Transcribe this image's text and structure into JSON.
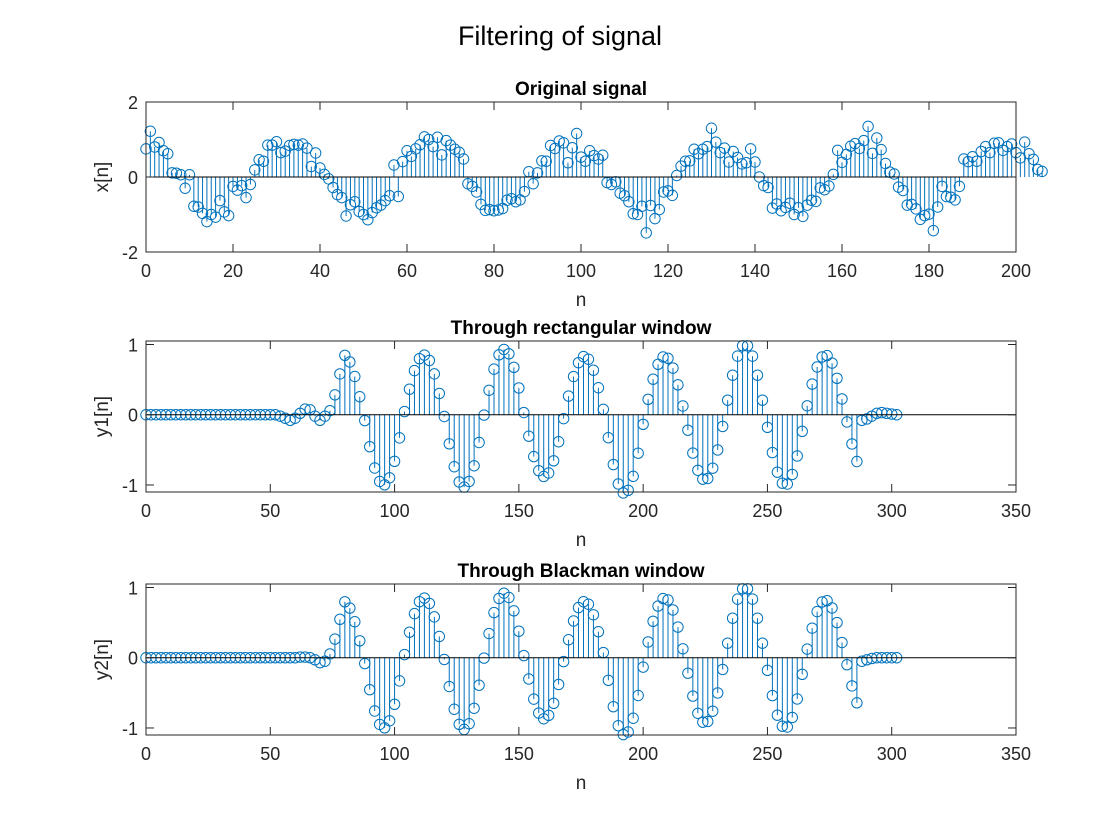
{
  "figure": {
    "suptitle": "Filtering of signal"
  },
  "colors": {
    "stem": "#0072BD",
    "axis": "#262626",
    "baseline": "#000000",
    "background": "#ffffff"
  },
  "chart_data": [
    {
      "type": "stem",
      "title": "Original signal",
      "xlabel": "n",
      "ylabel": "x[n]",
      "xlim": [
        0,
        200
      ],
      "ylim": [
        -2,
        2
      ],
      "xticks": [
        0,
        20,
        40,
        60,
        80,
        100,
        120,
        140,
        160,
        180,
        200
      ],
      "yticks": [
        -2,
        0,
        2
      ],
      "grid": false,
      "legend": "none",
      "x_start": 0,
      "values": [
        0.75,
        1.22,
        0.8,
        0.92,
        0.7,
        0.62,
        0.11,
        0.1,
        0.06,
        -0.3,
        0.06,
        -0.78,
        -0.8,
        -0.97,
        -1.19,
        -1.0,
        -1.07,
        -0.63,
        -0.93,
        -1.03,
        -0.25,
        -0.35,
        -0.23,
        -0.55,
        -0.2,
        0.19,
        0.46,
        0.42,
        0.85,
        0.85,
        0.94,
        0.65,
        0.69,
        0.84,
        0.87,
        0.85,
        0.88,
        0.77,
        0.28,
        0.64,
        0.24,
        0.07,
        -0.05,
        -0.28,
        -0.47,
        -0.55,
        -1.04,
        -0.74,
        -0.66,
        -0.92,
        -1.0,
        -1.14,
        -0.95,
        -0.82,
        -0.75,
        -0.63,
        -0.5,
        0.32,
        -0.52,
        0.41,
        0.7,
        0.55,
        0.75,
        0.86,
        1.07,
        1.0,
        0.81,
        1.06,
        0.59,
        0.97,
        0.85,
        0.74,
        0.66,
        0.48,
        -0.18,
        -0.25,
        -0.4,
        -0.73,
        -0.89,
        -0.87,
        -0.9,
        -0.88,
        -0.84,
        -0.62,
        -0.58,
        -0.66,
        -0.61,
        -0.39,
        0.14,
        -0.18,
        0.11,
        0.43,
        0.42,
        0.84,
        0.76,
        0.96,
        0.91,
        0.38,
        0.78,
        1.16,
        0.53,
        0.42,
        0.7,
        0.57,
        0.48,
        0.58,
        -0.15,
        -0.2,
        -0.13,
        -0.43,
        -0.5,
        -0.66,
        -0.98,
        -1.0,
        -0.78,
        -1.49,
        -0.76,
        -1.11,
        -0.87,
        -0.4,
        -0.37,
        -0.49,
        0.04,
        0.29,
        0.42,
        0.43,
        0.74,
        0.62,
        0.74,
        0.81,
        1.3,
        0.93,
        0.65,
        0.77,
        0.4,
        0.68,
        0.52,
        0.35,
        0.38,
        0.75,
        0.4,
        0.0,
        -0.23,
        -0.28,
        -0.83,
        -0.72,
        -0.9,
        -0.81,
        -0.7,
        -1.0,
        -0.82,
        -1.05,
        -0.75,
        -0.62,
        -0.65,
        -0.29,
        -0.34,
        -0.24,
        0.07,
        0.71,
        0.39,
        0.6,
        0.82,
        0.89,
        0.76,
        0.97,
        1.35,
        0.63,
        1.04,
        0.73,
        0.36,
        0.13,
        0.08,
        -0.27,
        -0.36,
        -0.75,
        -0.73,
        -0.85,
        -1.13,
        -1.03,
        -0.99,
        -1.43,
        -0.8,
        -0.25,
        -0.52,
        -0.54,
        -0.61,
        -0.25,
        0.48,
        0.41,
        0.54,
        0.42,
        0.68,
        0.81,
        0.65,
        0.9,
        0.91,
        0.71,
        0.81,
        0.88,
        0.65,
        0.51,
        0.93,
        0.62,
        0.47,
        0.2,
        0.15
      ]
    },
    {
      "type": "stem",
      "title": "Through rectangular window",
      "xlabel": "n",
      "ylabel": "y1[n]",
      "xlim": [
        0,
        350
      ],
      "ylim": [
        -1.1,
        1.05
      ],
      "xticks": [
        0,
        50,
        100,
        150,
        200,
        250,
        300,
        350
      ],
      "yticks": [
        -1,
        0,
        1
      ],
      "grid": false,
      "legend": "none",
      "x_start": 0,
      "x_end": 303,
      "signal_start": 74,
      "signal_end": 286,
      "period": 32.3,
      "phase_peak_n": 79.5,
      "peak_amplitudes": [
        0.85,
        -1.0,
        0.85,
        -1.03,
        0.93,
        -0.88,
        0.83,
        -1.12,
        0.83,
        -0.93,
        1.0,
        -1.0,
        0.85
      ],
      "transient_pre": [
        [
          54,
          -0.02
        ],
        [
          56,
          -0.05
        ],
        [
          58,
          -0.08
        ],
        [
          60,
          -0.05
        ],
        [
          62,
          0.02
        ],
        [
          64,
          0.08
        ],
        [
          66,
          0.07
        ],
        [
          68,
          -0.02
        ],
        [
          70,
          -0.08
        ],
        [
          72,
          -0.02
        ]
      ],
      "transient_post": [
        [
          286,
          -0.05
        ],
        [
          288,
          -0.08
        ],
        [
          290,
          -0.06
        ],
        [
          292,
          -0.02
        ],
        [
          294,
          0.02
        ],
        [
          296,
          0.03
        ],
        [
          298,
          0.02
        ],
        [
          300,
          0.01
        ],
        [
          302,
          0.0
        ]
      ]
    },
    {
      "type": "stem",
      "title": "Through Blackman window",
      "xlabel": "n",
      "ylabel": "y2[n]",
      "xlim": [
        0,
        350
      ],
      "ylim": [
        -1.1,
        1.05
      ],
      "xticks": [
        0,
        50,
        100,
        150,
        200,
        250,
        300,
        350
      ],
      "yticks": [
        -1,
        0,
        1
      ],
      "grid": false,
      "legend": "none",
      "x_start": 0,
      "x_end": 303,
      "signal_start": 74,
      "signal_end": 286,
      "period": 32.3,
      "phase_peak_n": 79.5,
      "peak_amplitudes": [
        0.8,
        -1.0,
        0.85,
        -1.02,
        0.92,
        -0.87,
        0.8,
        -1.1,
        0.85,
        -0.93,
        1.0,
        -1.0,
        0.82
      ],
      "transient_pre": [
        [
          62,
          0.01
        ],
        [
          64,
          0.01
        ],
        [
          66,
          0.0
        ],
        [
          68,
          -0.03
        ],
        [
          70,
          -0.07
        ],
        [
          72,
          -0.05
        ]
      ],
      "transient_post": [
        [
          286,
          -0.04
        ],
        [
          288,
          -0.05
        ],
        [
          290,
          -0.03
        ],
        [
          292,
          -0.01
        ],
        [
          294,
          0.0
        ]
      ]
    }
  ]
}
